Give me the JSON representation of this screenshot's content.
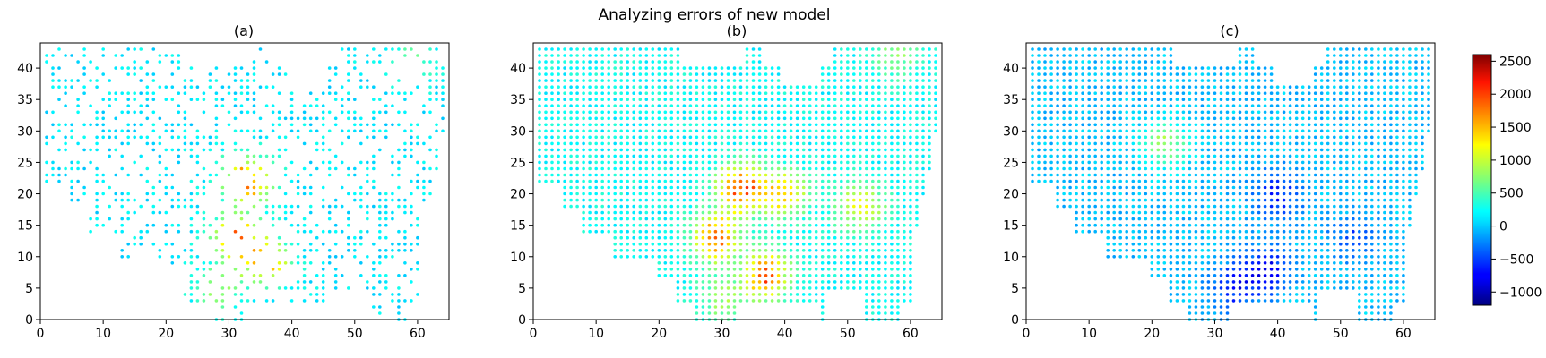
{
  "figure": {
    "suptitle": "Analyzing errors of new model"
  },
  "chart_data": [
    {
      "type": "scatter",
      "title": "(a)",
      "xlabel": "",
      "ylabel": "",
      "xlim": [
        0,
        65
      ],
      "ylim": [
        0,
        44
      ],
      "xticks": [
        0,
        10,
        20,
        30,
        40,
        50,
        60
      ],
      "yticks": [
        0,
        5,
        10,
        15,
        20,
        25,
        30,
        35,
        40
      ],
      "colormap": "jet",
      "point_fraction": 0.45,
      "description_of_pattern": "sparse points on a lattice, mostly near 0 with a central hot region",
      "hotspots": [
        {
          "x": 33,
          "y": 22,
          "value": 2000
        },
        {
          "x": 31,
          "y": 13,
          "value": 1800
        },
        {
          "x": 36,
          "y": 9,
          "value": 1700
        },
        {
          "x": 28,
          "y": 5,
          "value": 900
        },
        {
          "x": 59,
          "y": 41,
          "value": 700
        }
      ],
      "base_value": 150
    },
    {
      "type": "scatter",
      "title": "(b)",
      "xlabel": "",
      "ylabel": "",
      "xlim": [
        0,
        65
      ],
      "ylim": [
        0,
        44
      ],
      "xticks": [
        0,
        10,
        20,
        30,
        40,
        50,
        60
      ],
      "yticks": [
        0,
        5,
        10,
        15,
        20,
        25,
        30,
        35,
        40
      ],
      "colormap": "jet",
      "point_fraction": 1.0,
      "hotspots": [
        {
          "x": 33,
          "y": 21,
          "value": 2100
        },
        {
          "x": 29,
          "y": 13,
          "value": 1900
        },
        {
          "x": 37,
          "y": 7,
          "value": 2000
        },
        {
          "x": 40,
          "y": 20,
          "value": 1500
        },
        {
          "x": 52,
          "y": 18,
          "value": 1300
        },
        {
          "x": 30,
          "y": 3,
          "value": 900
        },
        {
          "x": 58,
          "y": 42,
          "value": 800
        }
      ],
      "base_value": 250
    },
    {
      "type": "scatter",
      "title": "(c)",
      "xlabel": "",
      "ylabel": "",
      "xlim": [
        0,
        65
      ],
      "ylim": [
        0,
        44
      ],
      "xticks": [
        0,
        10,
        20,
        30,
        40,
        50,
        60
      ],
      "yticks": [
        0,
        5,
        10,
        15,
        20,
        25,
        30,
        35,
        40
      ],
      "colormap": "jet",
      "point_fraction": 1.0,
      "hotspots": [
        {
          "x": 22,
          "y": 28,
          "value": 900
        },
        {
          "x": 38,
          "y": 8,
          "value": -900
        },
        {
          "x": 40,
          "y": 20,
          "value": -800
        },
        {
          "x": 33,
          "y": 5,
          "value": -700
        },
        {
          "x": 52,
          "y": 13,
          "value": -500
        }
      ],
      "base_value": 0
    }
  ],
  "colorbar": {
    "vmin": -1200,
    "vmax": 2600,
    "ticks": [
      -1000,
      -500,
      0,
      500,
      1000,
      1500,
      2000,
      2500
    ],
    "tick_labels": [
      "−1000",
      "−500",
      "0",
      "500",
      "1000",
      "1500",
      "2000",
      "2500"
    ]
  },
  "colors": {
    "axis": "#000000",
    "background": "#ffffff"
  }
}
